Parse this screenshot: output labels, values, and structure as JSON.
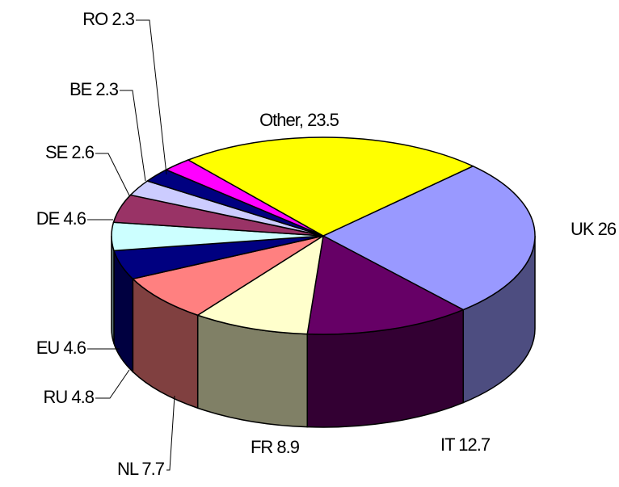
{
  "chart_data": {
    "type": "pie3d",
    "labels": [
      "UK 26",
      "IT 12.7",
      "FR 8.9",
      "NL 7.7",
      "RU 4.8",
      "EU 4.6",
      "DE 4.6",
      "SE 2.6",
      "BE 2.3",
      "RO 2.3",
      "Other, 23.5"
    ],
    "values": [
      26,
      12.7,
      8.9,
      7.7,
      4.8,
      4.6,
      4.6,
      2.6,
      2.3,
      2.3,
      23.5
    ],
    "colors": [
      "#9999ff",
      "#660066",
      "#ffffcc",
      "#ff8080",
      "#000080",
      "#ccffff",
      "#993366",
      "#ccccff",
      "#000080",
      "#ff00ff",
      "#ffff00"
    ]
  }
}
